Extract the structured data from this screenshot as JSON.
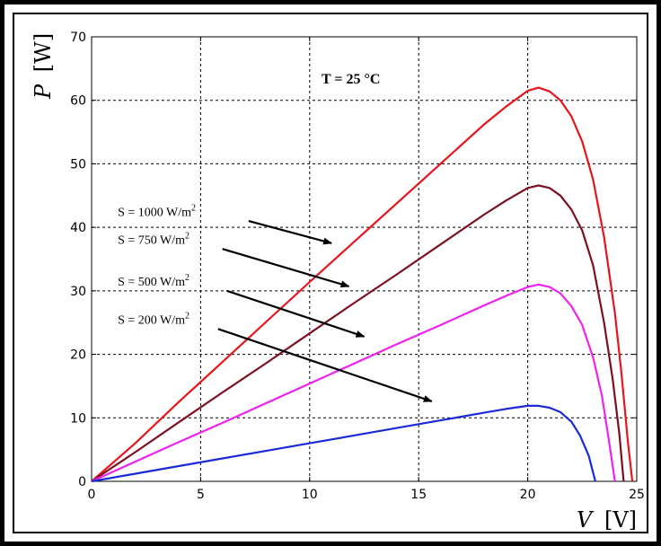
{
  "chart_data": {
    "type": "line",
    "title": "",
    "xlabel": "V [V]",
    "ylabel": "P [W]",
    "xlabel_var": "V",
    "xlabel_unit": "[V]",
    "ylabel_var": "P",
    "ylabel_unit": "[W]",
    "xlim": [
      0,
      25
    ],
    "ylim": [
      0,
      70
    ],
    "xticks": [
      "0",
      "5",
      "10",
      "15",
      "20",
      "25"
    ],
    "yticks": [
      "0",
      "10",
      "20",
      "30",
      "40",
      "50",
      "60",
      "70"
    ],
    "grid": true,
    "annotation_temperature": "T = 25 °C",
    "series": [
      {
        "name": "S = 1000 W/m²",
        "label_text": "S = 1000 W/m",
        "label_sup": "2",
        "color": "#e8141a",
        "x": [
          0,
          2,
          4,
          6,
          8,
          10,
          12,
          14,
          16,
          18,
          19,
          20,
          20.5,
          21,
          21.5,
          22,
          22.5,
          23,
          23.5,
          24,
          24.3,
          24.6,
          24.8
        ],
        "y": [
          0,
          6,
          12.5,
          18.8,
          25.1,
          31.4,
          37.6,
          43.8,
          50.0,
          56.2,
          59.0,
          61.5,
          62.0,
          61.4,
          60.0,
          57.5,
          53.5,
          47.5,
          38.5,
          26.5,
          17.0,
          6.0,
          0
        ]
      },
      {
        "name": "S = 750 W/m²",
        "label_text": "S = 750 W/m",
        "label_sup": "2",
        "color": "#7b1020",
        "x": [
          0,
          2,
          4,
          6,
          8,
          10,
          12,
          14,
          16,
          18,
          19,
          20,
          20.5,
          21,
          21.5,
          22,
          22.5,
          23,
          23.5,
          23.9,
          24.2,
          24.4
        ],
        "y": [
          0,
          4.6,
          9.3,
          14.0,
          18.6,
          23.3,
          28.0,
          32.6,
          37.3,
          42.0,
          44.2,
          46.2,
          46.6,
          46.2,
          45.0,
          42.8,
          39.5,
          34.0,
          25.0,
          16.0,
          7.5,
          0
        ]
      },
      {
        "name": "S = 500 W/m²",
        "label_text": "S = 500 W/m",
        "label_sup": "2",
        "color": "#ee22ee",
        "x": [
          0,
          2,
          4,
          6,
          8,
          10,
          12,
          14,
          16,
          18,
          19,
          20,
          20.5,
          21,
          21.5,
          22,
          22.5,
          23,
          23.4,
          23.7,
          24.0
        ],
        "y": [
          0,
          3.1,
          6.2,
          9.2,
          12.3,
          15.4,
          18.5,
          21.6,
          24.6,
          27.7,
          29.2,
          30.6,
          31.0,
          30.6,
          29.6,
          27.6,
          24.6,
          19.5,
          13.5,
          7.0,
          0
        ]
      },
      {
        "name": "S = 200 W/m²",
        "label_text": "S = 200 W/m",
        "label_sup": "2",
        "color": "#1a2ad8",
        "x": [
          0,
          2,
          4,
          6,
          8,
          10,
          12,
          14,
          16,
          18,
          19,
          20,
          20.5,
          21,
          21.5,
          22,
          22.4,
          22.8,
          23.1
        ],
        "y": [
          0,
          1.2,
          2.4,
          3.6,
          4.8,
          6.0,
          7.2,
          8.4,
          9.6,
          10.8,
          11.4,
          11.9,
          11.9,
          11.6,
          10.9,
          9.4,
          7.2,
          4.0,
          0
        ]
      }
    ]
  }
}
